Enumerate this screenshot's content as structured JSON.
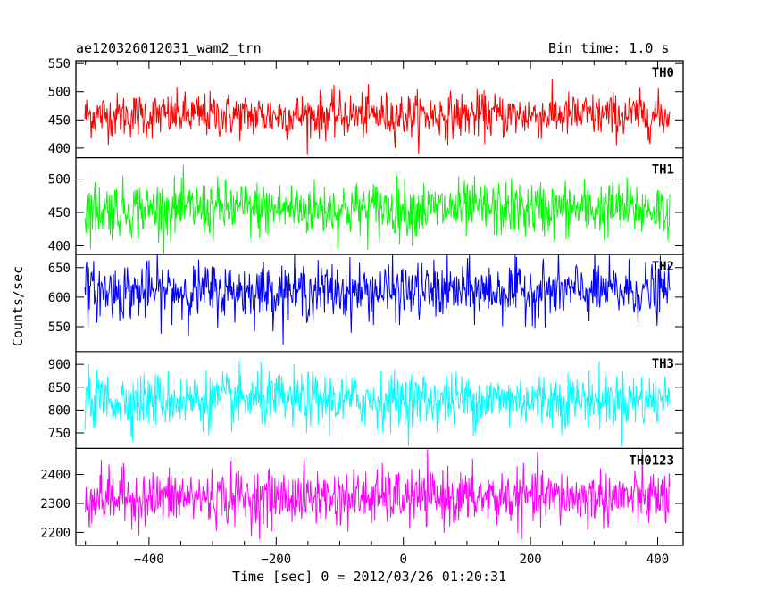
{
  "title_left": "ae120326012031_wam2_trn",
  "title_right": "Bin time: 1.0 s",
  "chart_data": {
    "type": "line",
    "xlabel": "Time [sec] 0 = 2012/03/26 01:20:31",
    "ylabel": "Counts/sec",
    "xlim": [
      -515,
      440
    ],
    "x_ticks": [
      -400,
      -200,
      0,
      200,
      400
    ],
    "x_range_data": [
      -501,
      419
    ],
    "bin_time_s": 1.0,
    "grid": false,
    "panels": [
      {
        "name": "TH0",
        "color": "#ff0000",
        "ylim": [
          383,
          555
        ],
        "y_ticks": [
          400,
          450,
          500,
          550
        ],
        "mean": 458,
        "noise_sd": 20
      },
      {
        "name": "TH1",
        "color": "#00ff00",
        "ylim": [
          387,
          532
        ],
        "y_ticks": [
          400,
          450,
          500
        ],
        "mean": 455,
        "noise_sd": 21
      },
      {
        "name": "TH2",
        "color": "#0000ff",
        "ylim": [
          508,
          672
        ],
        "y_ticks": [
          550,
          600,
          650
        ],
        "mean": 610,
        "noise_sd": 24
      },
      {
        "name": "TH3",
        "color": "#00ffff",
        "ylim": [
          716,
          928
        ],
        "y_ticks": [
          750,
          800,
          850,
          900
        ],
        "mean": 822,
        "noise_sd": 30
      },
      {
        "name": "TH0123",
        "color": "#ff00ff",
        "ylim": [
          2155,
          2490
        ],
        "y_ticks": [
          2200,
          2300,
          2400
        ],
        "mean": 2320,
        "noise_sd": 48
      }
    ]
  }
}
